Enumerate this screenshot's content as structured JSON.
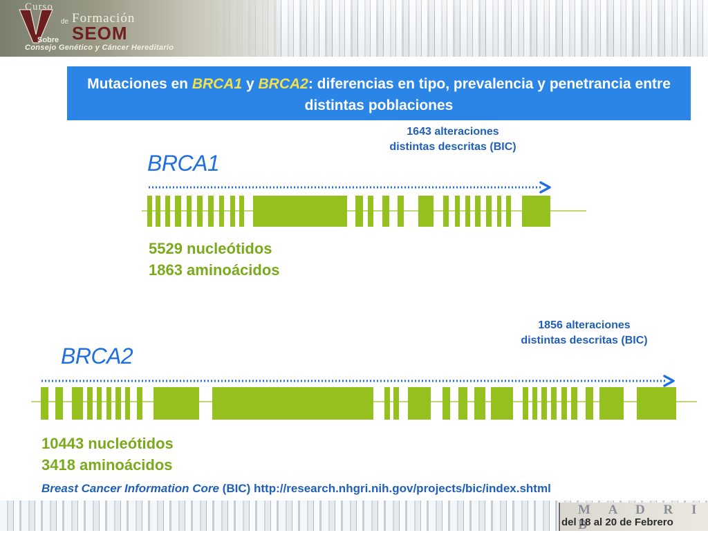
{
  "header": {
    "logo": {
      "curso": "Curso",
      "de": "de",
      "formacion": "Formación",
      "seom": "SEOM",
      "sobre": "Sobre",
      "subtitle": "Consejo Genético y Cáncer Hereditario"
    }
  },
  "title": {
    "part1": "Mutaciones en ",
    "gene1": "BRCA1",
    "part2": " y ",
    "gene2": "BRCA2",
    "part3": ": diferencias en tipo, prevalencia y penetrancia entre distintas poblaciones"
  },
  "brca1": {
    "name": "BRCA1",
    "alterations_line1": "1643 alteraciones",
    "alterations_line2": "distintas descritas (BIC)",
    "nucleotides": "5529 nucleótidos",
    "aminoacids": "1863 aminoácidos"
  },
  "brca2": {
    "name": "BRCA2",
    "alterations_line1": "1856 alteraciones",
    "alterations_line2": "distintas descritas (BIC)",
    "nucleotides": "10443 nucleótidos",
    "aminoacids": "3418 aminoácidos"
  },
  "footer": {
    "source_italic": "Breast Cancer Information Core",
    "source_rest": " (BIC) http://research.nhgri.nih.gov/projects/bic/index.shtml",
    "city": "M A D R I D",
    "dates": "del 18 al 20 de Febrero"
  },
  "colors": {
    "exon": "#95c11f",
    "arrow": "#1f6fe0",
    "title_bg": "#2b85e6",
    "gene_highlight": "#f3e04a"
  }
}
